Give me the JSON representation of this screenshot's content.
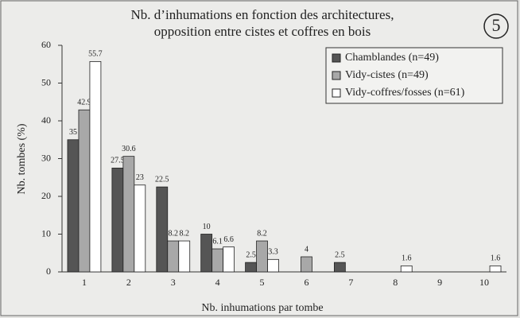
{
  "chart_data": {
    "type": "bar",
    "title": [
      "Nb. d’inhumations en fonction des architectures,",
      "opposition entre cistes et coffres en bois"
    ],
    "figure_number": "5",
    "x_label": "Nb. inhumations par tombe",
    "y_label": "Nb. tombes (%)",
    "categories": [
      "1",
      "2",
      "3",
      "4",
      "5",
      "6",
      "7",
      "8",
      "9",
      "10"
    ],
    "series": [
      {
        "name": "Chamblandes (n=49)",
        "color": "#555555",
        "values": [
          35,
          27.5,
          22.5,
          10,
          2.5,
          null,
          2.5,
          null,
          null,
          null
        ]
      },
      {
        "name": "Vidy-cistes (n=49)",
        "color": "#a8a8a8",
        "values": [
          42.9,
          30.6,
          8.2,
          6.1,
          8.2,
          4,
          null,
          null,
          null,
          null
        ]
      },
      {
        "name": "Vidy-coffres/fosses (n=61)",
        "color": "#ffffff",
        "values": [
          55.7,
          23,
          8.2,
          6.6,
          3.3,
          null,
          null,
          1.6,
          null,
          1.6
        ]
      }
    ],
    "ylim": [
      0,
      60
    ],
    "yticks": [
      0,
      10,
      20,
      30,
      40,
      50,
      60
    ],
    "legend": "top-right"
  }
}
